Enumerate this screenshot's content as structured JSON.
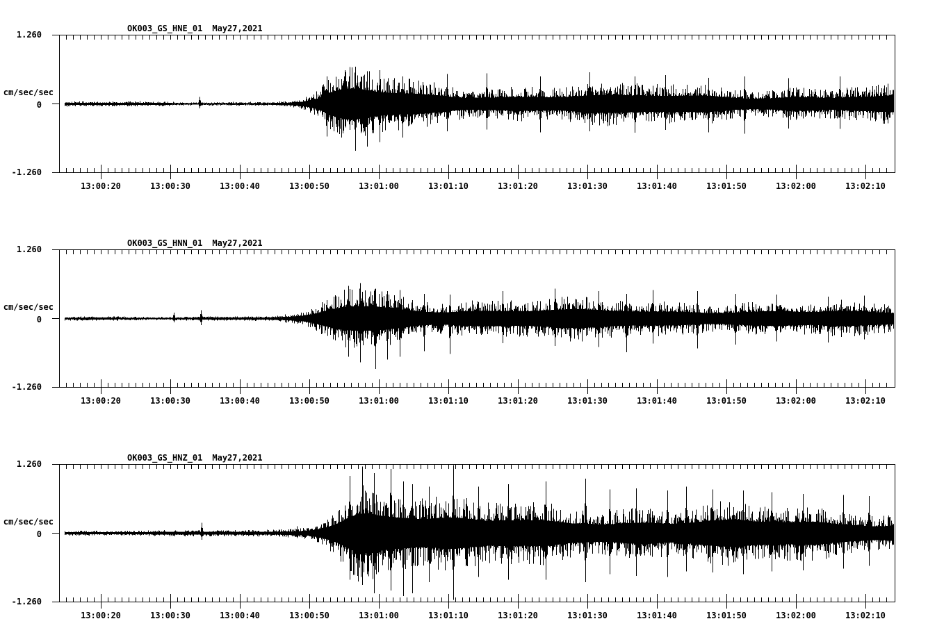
{
  "meta": {
    "background_color": "#ffffff",
    "ink_color": "#000000"
  },
  "chart_data": {
    "type": "line",
    "variant": "seismogram-min-max-trace",
    "grid": false,
    "legend": "none",
    "y_axis": {
      "unit_label": "cm/sec/sec",
      "tick_labels": [
        "1.260",
        "0",
        "-1.260"
      ],
      "tick_values": [
        1.26,
        0,
        -1.26
      ],
      "ylim": [
        -1.26,
        1.26
      ]
    },
    "x_axis": {
      "start_time": "13:00:14",
      "end_time": "13:02:14",
      "seconds_start": 14,
      "seconds_end": 134,
      "major_tick_interval_s": 10,
      "minor_tick_interval_s": 1,
      "tick_seconds": [
        20,
        30,
        40,
        50,
        60,
        70,
        80,
        90,
        100,
        110,
        120,
        130
      ],
      "tick_labels": [
        "13:00:20",
        "13:00:30",
        "13:00:40",
        "13:00:50",
        "13:01:00",
        "13:01:10",
        "13:01:20",
        "13:01:30",
        "13:01:40",
        "13:01:50",
        "13:02:00",
        "13:02:10"
      ]
    },
    "panels": [
      {
        "station": "OK003_GS_HNE_01",
        "date": "May27,2021",
        "seed": 101,
        "envelope": [
          [
            14,
            0.045
          ],
          [
            32,
            0.042
          ],
          [
            44,
            0.042
          ],
          [
            47,
            0.06
          ],
          [
            49,
            0.1
          ],
          [
            51,
            0.2
          ],
          [
            53,
            0.42
          ],
          [
            55,
            0.58
          ],
          [
            57,
            0.62
          ],
          [
            59,
            0.55
          ],
          [
            61,
            0.48
          ],
          [
            64,
            0.42
          ],
          [
            68,
            0.38
          ],
          [
            72,
            0.35
          ],
          [
            76,
            0.33
          ],
          [
            80,
            0.34
          ],
          [
            84,
            0.33
          ],
          [
            88,
            0.36
          ],
          [
            92,
            0.34
          ],
          [
            96,
            0.33
          ],
          [
            100,
            0.35
          ],
          [
            104,
            0.33
          ],
          [
            108,
            0.35
          ],
          [
            112,
            0.32
          ],
          [
            116,
            0.31
          ],
          [
            120,
            0.33
          ],
          [
            124,
            0.3
          ],
          [
            128,
            0.32
          ],
          [
            131,
            0.29
          ],
          [
            134,
            0.31
          ]
        ],
        "spikes": [
          [
            34.2,
            0.13,
            0.08
          ],
          [
            52.5,
            0.5,
            0.6
          ],
          [
            56.6,
            0.68,
            0.86
          ],
          [
            58.3,
            0.6,
            0.78
          ],
          [
            60.1,
            0.62,
            0.7
          ],
          [
            63.4,
            0.5,
            0.62
          ],
          [
            69.8,
            0.55,
            0.5
          ],
          [
            75.5,
            0.56,
            0.47
          ],
          [
            83.2,
            0.5,
            0.52
          ],
          [
            90.3,
            0.58,
            0.5
          ],
          [
            96.8,
            0.5,
            0.53
          ],
          [
            101.2,
            0.53,
            0.48
          ],
          [
            107.4,
            0.48,
            0.52
          ],
          [
            112.6,
            0.5,
            0.55
          ],
          [
            118.9,
            0.47,
            0.45
          ],
          [
            126.3,
            0.5,
            0.46
          ]
        ]
      },
      {
        "station": "OK003_GS_HNN_01",
        "date": "May27,2021",
        "seed": 202,
        "envelope": [
          [
            14,
            0.04
          ],
          [
            32,
            0.04
          ],
          [
            44,
            0.042
          ],
          [
            47,
            0.065
          ],
          [
            49,
            0.1
          ],
          [
            51,
            0.2
          ],
          [
            53,
            0.4
          ],
          [
            55,
            0.56
          ],
          [
            57,
            0.6
          ],
          [
            59,
            0.56
          ],
          [
            61,
            0.52
          ],
          [
            63,
            0.46
          ],
          [
            66,
            0.4
          ],
          [
            70,
            0.36
          ],
          [
            74,
            0.33
          ],
          [
            78,
            0.32
          ],
          [
            82,
            0.33
          ],
          [
            86,
            0.34
          ],
          [
            90,
            0.35
          ],
          [
            94,
            0.36
          ],
          [
            98,
            0.34
          ],
          [
            102,
            0.33
          ],
          [
            106,
            0.34
          ],
          [
            110,
            0.32
          ],
          [
            114,
            0.3
          ],
          [
            118,
            0.31
          ],
          [
            122,
            0.28
          ],
          [
            126,
            0.29
          ],
          [
            130,
            0.26
          ],
          [
            134,
            0.27
          ]
        ],
        "spikes": [
          [
            30.5,
            0.11,
            0.07
          ],
          [
            34.4,
            0.15,
            0.12
          ],
          [
            55.6,
            0.6,
            0.7
          ],
          [
            57.3,
            0.65,
            0.8
          ],
          [
            59.5,
            0.55,
            0.92
          ],
          [
            61.2,
            0.5,
            0.75
          ],
          [
            63.0,
            0.52,
            0.7
          ],
          [
            66.5,
            0.45,
            0.6
          ],
          [
            70.2,
            0.44,
            0.65
          ],
          [
            77.8,
            0.5,
            0.45
          ],
          [
            85.3,
            0.55,
            0.5
          ],
          [
            91.6,
            0.5,
            0.52
          ],
          [
            95.6,
            0.45,
            0.62
          ],
          [
            99.4,
            0.52,
            0.46
          ],
          [
            105.8,
            0.5,
            0.55
          ],
          [
            111.3,
            0.45,
            0.48
          ],
          [
            117.2,
            0.44,
            0.42
          ],
          [
            124.6,
            0.4,
            0.44
          ],
          [
            129.8,
            0.42,
            0.38
          ]
        ]
      },
      {
        "station": "OK003_GS_HNZ_01",
        "date": "May27,2021",
        "seed": 303,
        "envelope": [
          [
            14,
            0.05
          ],
          [
            32,
            0.05
          ],
          [
            44,
            0.055
          ],
          [
            46,
            0.07
          ],
          [
            48,
            0.1
          ],
          [
            50,
            0.15
          ],
          [
            52,
            0.28
          ],
          [
            54,
            0.5
          ],
          [
            55.5,
            0.75
          ],
          [
            57,
            0.95
          ],
          [
            58.5,
            1.0
          ],
          [
            60,
            0.92
          ],
          [
            62,
            0.88
          ],
          [
            64,
            0.78
          ],
          [
            66,
            0.65
          ],
          [
            68,
            0.6
          ],
          [
            70,
            0.6
          ],
          [
            72,
            0.57
          ],
          [
            75,
            0.53
          ],
          [
            78,
            0.55
          ],
          [
            81,
            0.5
          ],
          [
            84,
            0.52
          ],
          [
            87,
            0.5
          ],
          [
            90,
            0.52
          ],
          [
            93,
            0.48
          ],
          [
            96,
            0.5
          ],
          [
            99,
            0.52
          ],
          [
            102,
            0.5
          ],
          [
            105,
            0.52
          ],
          [
            108,
            0.5
          ],
          [
            111,
            0.52
          ],
          [
            114,
            0.47
          ],
          [
            117,
            0.5
          ],
          [
            120,
            0.45
          ],
          [
            123,
            0.46
          ],
          [
            126,
            0.42
          ],
          [
            129,
            0.44
          ],
          [
            132,
            0.39
          ],
          [
            134,
            0.41
          ]
        ],
        "spikes": [
          [
            34.5,
            0.19,
            0.12
          ],
          [
            48.2,
            0.13,
            0.09
          ],
          [
            55.8,
            1.05,
            0.85
          ],
          [
            57.6,
            1.22,
            0.95
          ],
          [
            59.3,
            1.1,
            1.1
          ],
          [
            61.7,
            1.18,
            1.05
          ],
          [
            63.5,
            0.95,
            1.15
          ],
          [
            64.8,
            0.9,
            1.1
          ],
          [
            67.2,
            0.85,
            0.9
          ],
          [
            70.7,
            1.25,
            1.22
          ],
          [
            74.3,
            0.85,
            0.8
          ],
          [
            78.6,
            0.9,
            0.85
          ],
          [
            84.0,
            0.95,
            0.85
          ],
          [
            89.7,
            1.0,
            0.9
          ],
          [
            93.2,
            0.8,
            0.75
          ],
          [
            97.0,
            0.82,
            0.78
          ],
          [
            101.5,
            0.78,
            0.8
          ],
          [
            104.2,
            0.85,
            0.7
          ],
          [
            108.0,
            0.8,
            0.72
          ],
          [
            112.4,
            0.78,
            0.75
          ],
          [
            116.5,
            0.75,
            0.7
          ],
          [
            121.0,
            0.72,
            0.68
          ],
          [
            126.8,
            0.7,
            0.65
          ],
          [
            130.5,
            0.68,
            0.6
          ]
        ]
      }
    ]
  }
}
